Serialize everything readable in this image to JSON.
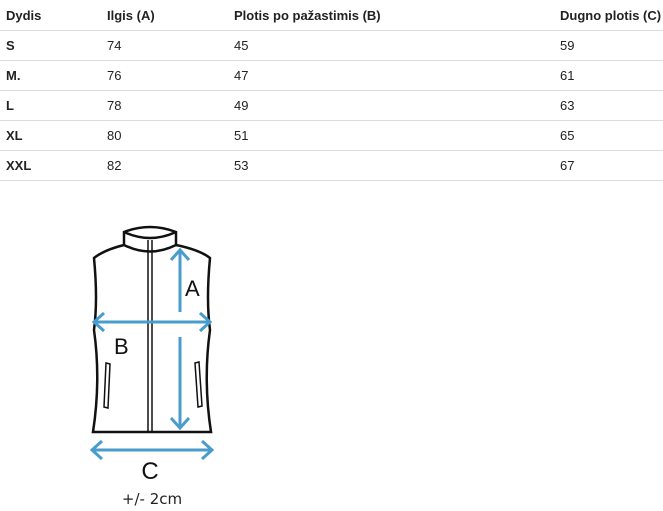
{
  "table": {
    "headers": [
      "Dydis",
      "Ilgis (A)",
      "Plotis po pažastimis (B)",
      "Dugno plotis (C)"
    ],
    "rows": [
      [
        "S",
        "74",
        "45",
        "59"
      ],
      [
        "M.",
        "76",
        "47",
        "61"
      ],
      [
        "L",
        "78",
        "49",
        "63"
      ],
      [
        "XL",
        "80",
        "51",
        "65"
      ],
      [
        "XXL",
        "82",
        "53",
        "67"
      ]
    ]
  },
  "diagram": {
    "label_a": "A",
    "label_b": "B",
    "label_c": "C",
    "tolerance": "+/- 2cm",
    "arrow_color": "#4a9ccc"
  }
}
